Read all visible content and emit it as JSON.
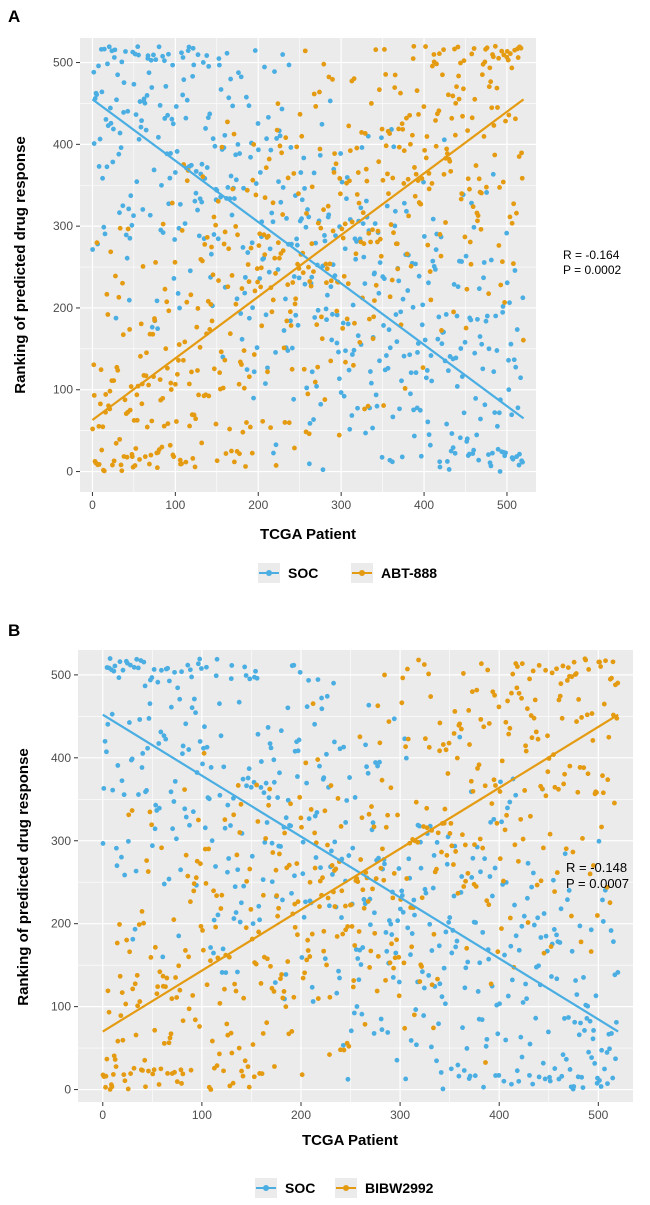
{
  "figure": {
    "colors": {
      "soc": "#4aaee2",
      "drug": "#e49b12",
      "panel_bg": "#ebebeb",
      "grid": "#ffffff",
      "axis_text": "#4d4d4d"
    }
  },
  "chart_data": [
    {
      "type": "scatter",
      "panel_label": "A",
      "xlabel": "TCGA Patient",
      "ylabel": "Ranking of predicted drug response",
      "xlim": [
        -15,
        535
      ],
      "ylim": [
        -25,
        530
      ],
      "xticks": [
        0,
        100,
        200,
        300,
        400,
        500
      ],
      "yticks": [
        0,
        100,
        200,
        300,
        400,
        500
      ],
      "n_patients": 520,
      "stat_r": "R = -0.164",
      "stat_p": "P = 0.0002",
      "series": [
        {
          "name": "SOC",
          "color": "#4aaee2",
          "trend": {
            "x": [
              0,
              520
            ],
            "y": [
              455,
              65
            ]
          },
          "seed": 11
        },
        {
          "name": "ABT-888",
          "color": "#e49b12",
          "trend": {
            "x": [
              0,
              520
            ],
            "y": [
              63,
              455
            ]
          },
          "seed": 23
        }
      ]
    },
    {
      "type": "scatter",
      "panel_label": "B",
      "xlabel": "TCGA Patient",
      "ylabel": "Ranking of predicted drug response",
      "xlim": [
        -25,
        535
      ],
      "ylim": [
        -15,
        530
      ],
      "xticks": [
        0,
        100,
        200,
        300,
        400,
        500
      ],
      "yticks": [
        0,
        100,
        200,
        300,
        400,
        500
      ],
      "n_patients": 520,
      "stat_r": "R = -0.148",
      "stat_p": "P = 0.0007",
      "series": [
        {
          "name": "SOC",
          "color": "#4aaee2",
          "trend": {
            "x": [
              0,
              520
            ],
            "y": [
              452,
              70
            ]
          },
          "seed": 37
        },
        {
          "name": "BIBW2992",
          "color": "#e49b12",
          "trend": {
            "x": [
              0,
              520
            ],
            "y": [
              70,
              452
            ]
          },
          "seed": 53
        }
      ]
    }
  ]
}
